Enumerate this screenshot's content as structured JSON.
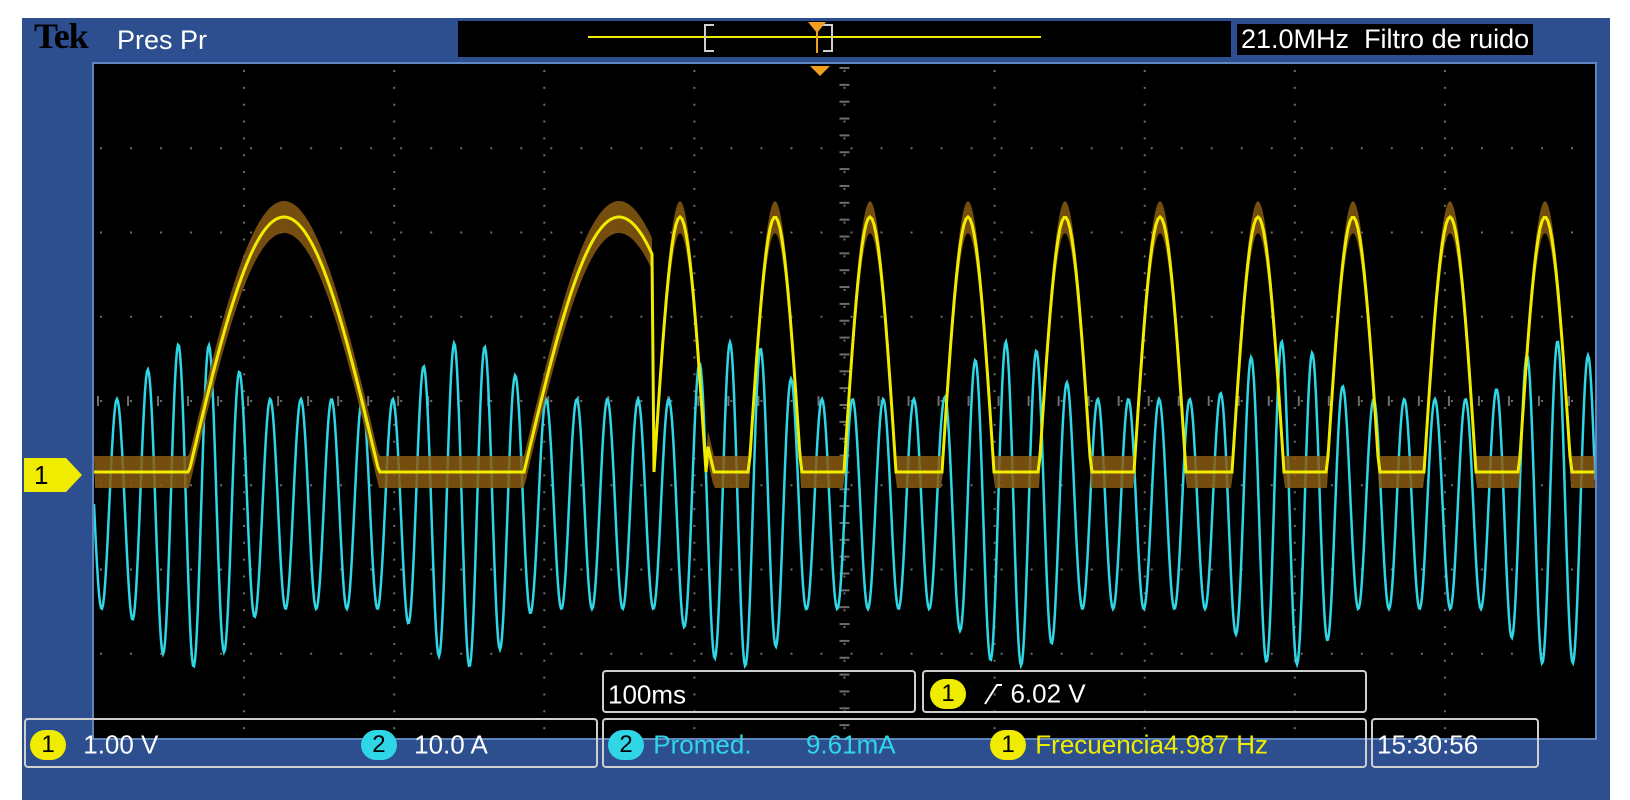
{
  "header": {
    "brand": "Tek",
    "acq_state": "Pres Pr",
    "bandwidth": "21.0MHz",
    "filter": "Filtro de ruido"
  },
  "colors": {
    "background": "#000000",
    "bezel": "#2d4f8f",
    "grid": "#6d6d6d",
    "ch1": "#f0ec00",
    "ch1_envelope": "#8a5a10",
    "ch2": "#2fd6e6"
  },
  "channel_marker": {
    "label": "1"
  },
  "timebase": {
    "value": "100ms"
  },
  "trigger": {
    "channel": "1",
    "slope_icon": "rising-edge-icon",
    "level": "6.02 V"
  },
  "channels": [
    {
      "number": "1",
      "scale": "1.00 V"
    },
    {
      "number": "2",
      "scale": "10.0 A"
    }
  ],
  "measurements": [
    {
      "channel": "2",
      "name": "Promed.",
      "value": "9.61mA"
    },
    {
      "channel": "1",
      "name": "Frecuencia",
      "value": "4.987 Hz"
    }
  ],
  "clock": {
    "time": "15:30:56"
  }
}
